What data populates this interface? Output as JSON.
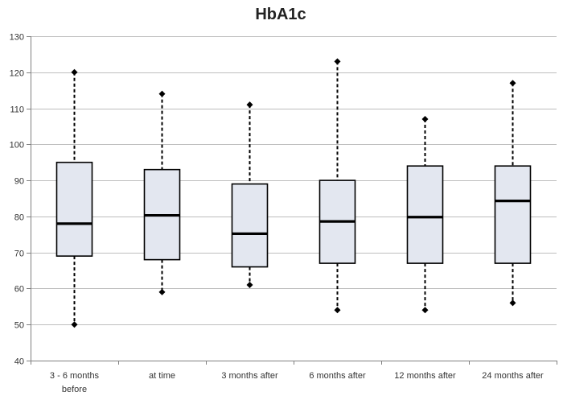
{
  "chart_data": {
    "type": "boxplot",
    "title": "HbA1c",
    "xlabel": "",
    "ylabel": "",
    "ylim": [
      40,
      130
    ],
    "ytick_step": 10,
    "grid": true,
    "legend": "none",
    "categories": [
      [
        "3 - 6 months",
        "before"
      ],
      [
        "at time"
      ],
      [
        "3 months after"
      ],
      [
        "6 months after"
      ],
      [
        "12 months after"
      ],
      [
        "24 months after"
      ]
    ],
    "boxes": [
      {
        "min": 50,
        "q1": 69,
        "median": 78,
        "q3": 95,
        "max": 120
      },
      {
        "min": 59,
        "q1": 68,
        "median": 80.3,
        "q3": 93,
        "max": 114
      },
      {
        "min": 61,
        "q1": 66,
        "median": 75.2,
        "q3": 89,
        "max": 111
      },
      {
        "min": 54,
        "q1": 67,
        "median": 78.6,
        "q3": 90,
        "max": 123
      },
      {
        "min": 54,
        "q1": 67,
        "median": 79.8,
        "q3": 94,
        "max": 107
      },
      {
        "min": 56,
        "q1": 67,
        "median": 84.3,
        "q3": 94,
        "max": 117
      }
    ],
    "colors": {
      "box_fill": "#E3E7F0",
      "box_stroke": "#000000",
      "grid": "#BEBEBE",
      "axis": "#808080",
      "whisker": "#000000"
    }
  }
}
